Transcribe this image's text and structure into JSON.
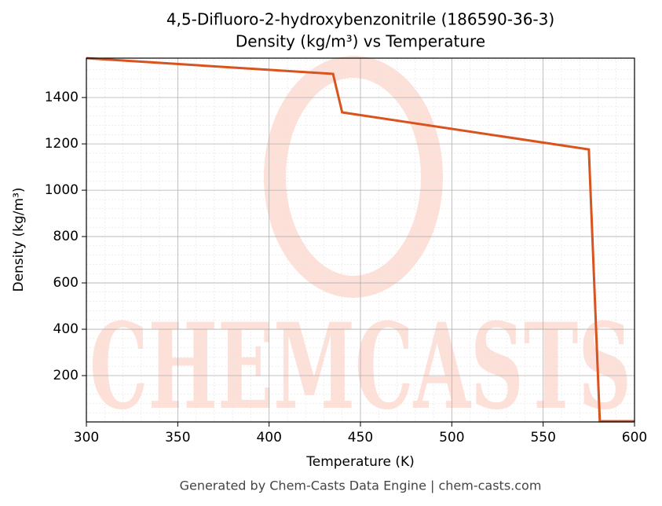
{
  "chart_data": {
    "type": "line",
    "title": "4,5-Difluoro-2-hydroxybenzonitrile (186590-36-3)",
    "subtitle": "Density (kg/m³) vs Temperature",
    "x_label": "Temperature (K)",
    "y_label": "Density (kg/m³)",
    "footer": "Generated by Chem-Casts Data Engine | chem-casts.com",
    "watermark": "CHEMCASTS",
    "x": [
      300,
      435,
      440,
      575,
      581,
      600
    ],
    "series": [
      {
        "name": "Density",
        "color": "#d9531e",
        "values": [
          1570,
          1502,
          1336,
          1176,
          3,
          3
        ]
      }
    ],
    "xlim": [
      300,
      600
    ],
    "xticks": [
      300,
      350,
      400,
      450,
      500,
      550,
      600
    ],
    "ylim": [
      0,
      1570
    ],
    "yticks": [
      200,
      400,
      600,
      800,
      1000,
      1200,
      1400
    ],
    "grid": true
  }
}
